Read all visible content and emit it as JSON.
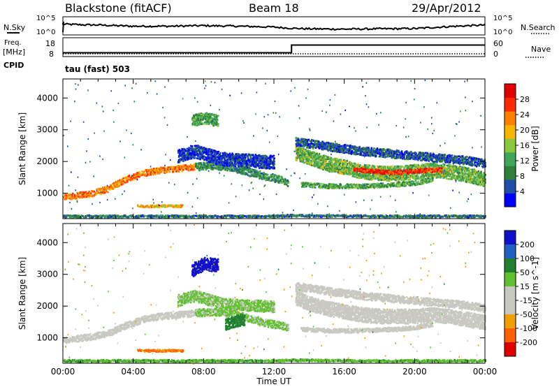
{
  "header": {
    "station": "Blackstone (fitACF)",
    "beam": "Beam 18",
    "date": "29/Apr/2012"
  },
  "noise_panel": {
    "left_label": "N.Sky",
    "right_label": "N.Search",
    "ytick_top": "10^5",
    "ytick_bottom": "10^0",
    "ytick_top_right": "10^5",
    "ytick_bottom_right": "10^0"
  },
  "freq_panel": {
    "left_label_line1": "Freq.",
    "left_label_line2": "[MHz]",
    "right_label": "Nave",
    "yticks_left": [
      "18",
      "8"
    ],
    "yticks_right": [
      "60",
      "0"
    ],
    "cpid_label": "CPID",
    "mode_label": "tau (fast) 503"
  },
  "chart_data": [
    {
      "type": "line",
      "title": "",
      "series": [
        {
          "name": "N.Sky",
          "x": [
            0,
            1,
            2,
            3,
            4,
            6,
            8,
            10,
            12,
            13,
            14,
            16,
            18,
            20,
            22,
            24
          ],
          "values": [
            3.2,
            3.0,
            2.9,
            2.7,
            2.5,
            2.5,
            2.7,
            2.5,
            2.2,
            1.8,
            1.6,
            1.5,
            1.6,
            1.7,
            2.4,
            2.9
          ]
        }
      ],
      "xlim": [
        0,
        24
      ],
      "ylim": [
        0,
        5
      ]
    },
    {
      "type": "line",
      "title": "",
      "series": [
        {
          "name": "Freq",
          "x": [
            0,
            13,
            13,
            24
          ],
          "values": [
            10.5,
            10.5,
            15.5,
            15.5
          ]
        },
        {
          "name": "Nave",
          "x": [
            0,
            24
          ],
          "values": [
            1,
            1
          ]
        }
      ],
      "xlim": [
        0,
        24
      ]
    },
    {
      "type": "heatmap",
      "title": "",
      "quantity": "Power",
      "ylabel": "Slant Range [km]",
      "ylim": [
        200,
        4600
      ],
      "yticks": [
        1000,
        2000,
        3000,
        4000
      ],
      "xlim": [
        0,
        24
      ],
      "colorbar": {
        "label": "Power [dB]",
        "ticks": [
          4,
          8,
          12,
          16,
          20,
          24,
          28
        ],
        "range": [
          0,
          32
        ]
      },
      "bands": [
        {
          "x": [
            0,
            1.5,
            2.5,
            3.5,
            4.5,
            5.5,
            6.5,
            7.5
          ],
          "range": [
            900,
            1000,
            1150,
            1450,
            1650,
            1750,
            1800,
            1850
          ],
          "width": 160,
          "power": 23
        },
        {
          "x": [
            7.5,
            8.5,
            9.5,
            10.5,
            11.5,
            12.5,
            12.8
          ],
          "range": [
            1850,
            1900,
            1850,
            1700,
            1550,
            1450,
            1350
          ],
          "width": 200,
          "power": 10
        },
        {
          "x": [
            13.2,
            14,
            15,
            16,
            17,
            18,
            19,
            20,
            21,
            22,
            23,
            24
          ],
          "range": [
            2300,
            2150,
            1950,
            1850,
            1700,
            1650,
            1650,
            1700,
            1750,
            1700,
            1600,
            1450
          ],
          "width": 380,
          "power": 14
        },
        {
          "x": [
            13.2,
            15,
            17,
            19,
            21,
            23,
            24
          ],
          "range": [
            2650,
            2500,
            2350,
            2250,
            2150,
            2050,
            1950
          ],
          "width": 220,
          "power": 6
        },
        {
          "x": [
            13.5,
            15,
            17,
            19,
            20,
            21
          ],
          "range": [
            1300,
            1250,
            1250,
            1300,
            1350,
            1450
          ],
          "width": 120,
          "power": 12
        },
        {
          "x": [
            16.5,
            17.5,
            18.5,
            19.5,
            20.5,
            21.5
          ],
          "range": [
            1780,
            1720,
            1680,
            1700,
            1740,
            1760
          ],
          "width": 110,
          "power": 27
        },
        {
          "x": [
            4.2,
            5,
            6,
            6.8
          ],
          "range": [
            620,
            620,
            620,
            620
          ],
          "width": 60,
          "power": 20
        },
        {
          "x": [
            7.3,
            8,
            8.8
          ],
          "range": [
            3300,
            3400,
            3300
          ],
          "width": 300,
          "power": 12
        },
        {
          "x": [
            6.5,
            7.5,
            9,
            10.5,
            12
          ],
          "range": [
            2200,
            2350,
            2100,
            2050,
            2000
          ],
          "width": 350,
          "power": 4
        },
        {
          "x": [
            0,
            6,
            12,
            13,
            18,
            24
          ],
          "range": [
            300,
            300,
            300,
            320,
            300,
            300
          ],
          "width": 60,
          "power": 8
        }
      ]
    },
    {
      "type": "heatmap",
      "title": "",
      "quantity": "Velocity",
      "xlabel": "Time UT",
      "ylabel": "Slant Range [km]",
      "ylim": [
        200,
        4600
      ],
      "yticks": [
        1000,
        2000,
        3000,
        4000
      ],
      "xticks": [
        "00:00",
        "04:00",
        "08:00",
        "12:00",
        "16:00",
        "20:00",
        "00:00"
      ],
      "xlim": [
        0,
        24
      ],
      "colorbar": {
        "label": "Velocity [m s^-1]",
        "ticks": [
          200,
          100,
          50,
          15,
          -15,
          -50,
          -100,
          -200
        ]
      },
      "bands": [
        {
          "x": [
            0,
            1.5,
            2.5,
            3.5,
            4.5,
            5.5,
            6.5,
            7.5
          ],
          "range": [
            950,
            1050,
            1150,
            1400,
            1600,
            1700,
            1750,
            1800
          ],
          "width": 170,
          "velocity": 0
        },
        {
          "x": [
            7.5,
            8.5,
            9.5,
            10.5,
            11.5,
            12.5,
            12.8
          ],
          "range": [
            1800,
            1850,
            1800,
            1650,
            1500,
            1400,
            1350
          ],
          "width": 200,
          "velocity": 20
        },
        {
          "x": [
            13.2,
            14,
            15,
            16,
            17,
            18,
            19,
            20,
            21,
            22,
            23,
            24
          ],
          "range": [
            2300,
            2100,
            1950,
            1850,
            1750,
            1700,
            1700,
            1700,
            1750,
            1700,
            1600,
            1500
          ],
          "width": 380,
          "velocity": 0
        },
        {
          "x": [
            13.2,
            15,
            17,
            19,
            21,
            23,
            24
          ],
          "range": [
            2650,
            2500,
            2350,
            2250,
            2150,
            2050,
            1950
          ],
          "width": 200,
          "velocity": 5
        },
        {
          "x": [
            13.5,
            15,
            17,
            19,
            20,
            21
          ],
          "range": [
            1300,
            1250,
            1250,
            1300,
            1350,
            1450
          ],
          "width": 110,
          "velocity": -5
        },
        {
          "x": [
            9.2,
            9.8,
            10.3
          ],
          "range": [
            1450,
            1550,
            1600
          ],
          "width": 300,
          "velocity": 50
        },
        {
          "x": [
            4.2,
            5,
            6,
            6.8
          ],
          "range": [
            620,
            620,
            620,
            620
          ],
          "width": 60,
          "velocity": -55
        },
        {
          "x": [
            7.3,
            8,
            8.8
          ],
          "range": [
            3150,
            3350,
            3300
          ],
          "width": 350,
          "velocity": 210
        },
        {
          "x": [
            6.5,
            7.5,
            9,
            10.5,
            12
          ],
          "range": [
            2200,
            2350,
            2100,
            2050,
            2000
          ],
          "width": 300,
          "velocity": 20
        },
        {
          "x": [
            0,
            6,
            12,
            13,
            18,
            24
          ],
          "range": [
            300,
            300,
            300,
            320,
            300,
            300
          ],
          "width": 60,
          "velocity": 30
        }
      ]
    }
  ],
  "colors": {
    "power_scale": [
      "#0000ff",
      "#1f4fa8",
      "#2f7f3a",
      "#3fa65a",
      "#8ac83f",
      "#f7b500",
      "#ff7f00",
      "#ff2a00",
      "#e00000"
    ],
    "velocity_scale": [
      "#1010c8",
      "#2060c0",
      "#208030",
      "#60c030",
      "#c8c8c0",
      "#c8c8c0",
      "#f0a000",
      "#ff6000",
      "#e00000"
    ]
  }
}
